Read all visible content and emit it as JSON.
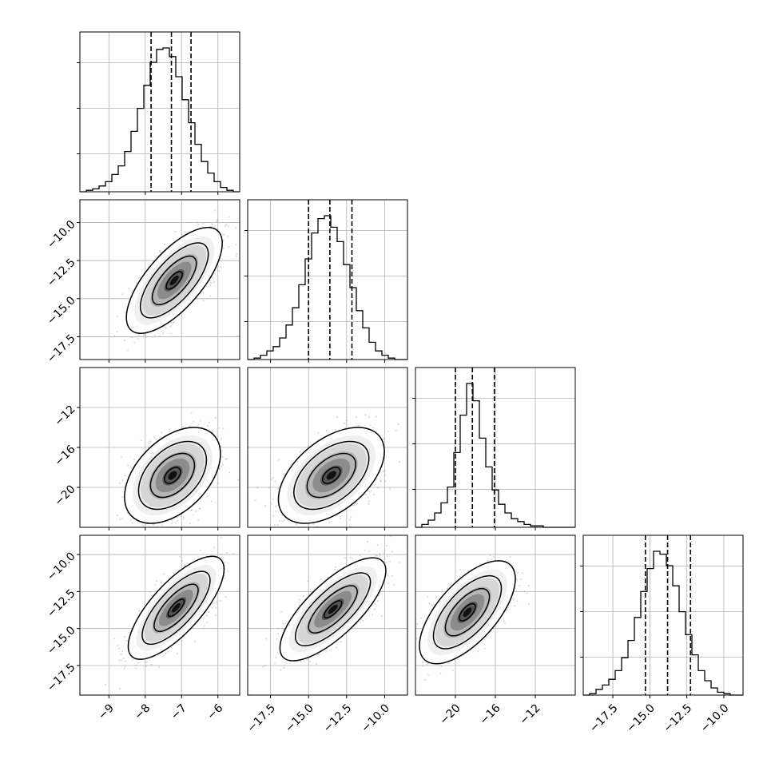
{
  "chart_data": {
    "type": "corner",
    "n_params": 4,
    "colors": {
      "line": "#000000",
      "grid": "#b0b0b0",
      "points": "#9a9a9a"
    },
    "grid": true,
    "axis_ranges": [
      [
        -9.8,
        -5.4
      ],
      [
        -19.0,
        -8.5
      ],
      [
        -24.0,
        -8.0
      ],
      [
        -19.5,
        -8.7
      ]
    ],
    "axis_tick_values": [
      [
        -9,
        -8,
        -7,
        -6
      ],
      [
        -17.5,
        -15.0,
        -12.5,
        -10.0
      ],
      [
        -20,
        -16,
        -12
      ],
      [
        -17.5,
        -15.0,
        -12.5,
        -10.0
      ]
    ],
    "axis_tick_labels": [
      [
        "−9",
        "−8",
        "−7",
        "−6"
      ],
      [
        "−17.5",
        "−15.0",
        "−12.5",
        "−10.0"
      ],
      [
        "−20",
        "−16",
        "−12"
      ],
      [
        "−17.5",
        "−15.0",
        "−12.5",
        "−10.0"
      ]
    ],
    "quantiles": [
      [
        -7.84,
        -7.28,
        -6.74
      ],
      [
        -15.0,
        -13.6,
        -12.15
      ],
      [
        -20.0,
        -18.3,
        -16.1
      ],
      [
        -15.3,
        -13.8,
        -12.25
      ]
    ],
    "histograms": [
      {
        "bin_edges_range": [
          -9.8,
          -5.4
        ],
        "counts": [
          0,
          1,
          2,
          4,
          7,
          12,
          18,
          28,
          42,
          58,
          74,
          90,
          99,
          100,
          94,
          80,
          64,
          48,
          33,
          21,
          13,
          7,
          3,
          1,
          0
        ]
      },
      {
        "bin_edges_range": [
          -19.0,
          -8.5
        ],
        "counts": [
          0,
          1,
          3,
          6,
          9,
          15,
          24,
          36,
          52,
          70,
          88,
          98,
          100,
          92,
          82,
          66,
          50,
          34,
          22,
          12,
          6,
          3,
          1,
          0,
          0
        ]
      },
      {
        "bin_edges_range": [
          -24.0,
          -8.0
        ],
        "counts": [
          0,
          2,
          5,
          10,
          17,
          28,
          52,
          78,
          100,
          88,
          62,
          42,
          26,
          16,
          10,
          6,
          4,
          2,
          1,
          1,
          0,
          0,
          0,
          0,
          0
        ]
      },
      {
        "bin_edges_range": [
          -19.5,
          -8.7
        ],
        "counts": [
          0,
          1,
          4,
          7,
          11,
          17,
          26,
          38,
          54,
          72,
          88,
          100,
          98,
          90,
          76,
          58,
          42,
          28,
          17,
          10,
          5,
          2,
          1,
          0,
          0
        ]
      }
    ],
    "scatter_panels": [
      {
        "x_param": 0,
        "y_param": 1,
        "mean": [
          -7.2,
          -13.8
        ],
        "std": [
          0.55,
          1.45
        ],
        "corr": 0.7
      },
      {
        "x_param": 0,
        "y_param": 2,
        "mean": [
          -7.25,
          -18.8
        ],
        "std": [
          0.55,
          2.0
        ],
        "corr": 0.45
      },
      {
        "x_param": 1,
        "y_param": 2,
        "mean": [
          -13.5,
          -18.8
        ],
        "std": [
          1.45,
          2.0
        ],
        "corr": 0.5
      },
      {
        "x_param": 0,
        "y_param": 3,
        "mean": [
          -7.15,
          -13.6
        ],
        "std": [
          0.55,
          1.45
        ],
        "corr": 0.75
      },
      {
        "x_param": 1,
        "y_param": 3,
        "mean": [
          -13.4,
          -13.7
        ],
        "std": [
          1.45,
          1.45
        ],
        "corr": 0.75
      },
      {
        "x_param": 2,
        "y_param": 3,
        "mean": [
          -18.8,
          -13.9
        ],
        "std": [
          2.0,
          1.45
        ],
        "corr": 0.65
      }
    ]
  }
}
